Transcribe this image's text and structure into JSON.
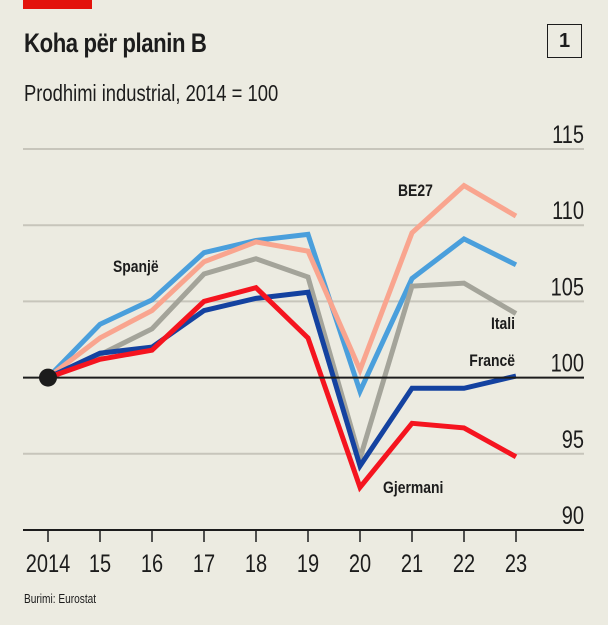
{
  "header": {
    "title": "Koha për planin B",
    "subtitle": "Prodhimi industrial, 2014 = 100",
    "chart_number": "1"
  },
  "footer": {
    "source": "Burimi: Eurostat"
  },
  "colors": {
    "background": "#ecebe1",
    "accent": "#e3120b",
    "BE27": "#f9a58f",
    "Spanjë": "#4a9fdc",
    "Itali": "#a4a49a",
    "Francë": "#1442a0",
    "Gjermani": "#f5141f",
    "grid": "#c7c5bb",
    "axis": "#1c1c1c"
  },
  "chart_data": {
    "type": "line",
    "title": "Koha për planin B",
    "subtitle": "Prodhimi industrial, 2014 = 100",
    "xlabel": "",
    "ylabel": "",
    "x": [
      2014,
      2015,
      2016,
      2017,
      2018,
      2019,
      2020,
      2021,
      2022,
      2023
    ],
    "x_tick_labels": [
      "2014",
      "15",
      "16",
      "17",
      "18",
      "19",
      "20",
      "21",
      "22",
      "23"
    ],
    "y_ticks": [
      90,
      95,
      100,
      105,
      110,
      115
    ],
    "y_tick_labels": [
      "90",
      "95",
      "100",
      "105",
      "110",
      "115"
    ],
    "ylim": [
      90,
      115
    ],
    "grid": true,
    "y_axis_position": "right",
    "baseline": 100,
    "legend": "inline labels",
    "series": [
      {
        "name": "BE27",
        "values": [
          100,
          102.6,
          104.4,
          107.6,
          108.9,
          108.3,
          100.5,
          109.5,
          112.6,
          110.6
        ]
      },
      {
        "name": "Spanjë",
        "values": [
          100,
          103.5,
          105.1,
          108.2,
          109.0,
          109.4,
          99.1,
          106.5,
          109.1,
          107.4
        ]
      },
      {
        "name": "Itali",
        "values": [
          100,
          101.5,
          103.2,
          106.8,
          107.8,
          106.6,
          94.7,
          106.0,
          106.2,
          104.2
        ]
      },
      {
        "name": "Francë",
        "values": [
          100,
          101.6,
          102.0,
          104.4,
          105.2,
          105.6,
          94.2,
          99.3,
          99.3,
          100.1
        ]
      },
      {
        "name": "Gjermani",
        "values": [
          100,
          101.2,
          101.8,
          105.0,
          105.9,
          102.6,
          92.8,
          97.0,
          96.7,
          94.8
        ]
      }
    ],
    "annotations": [
      "BE27",
      "Spanjë",
      "Itali",
      "Francë",
      "Gjermani"
    ]
  }
}
